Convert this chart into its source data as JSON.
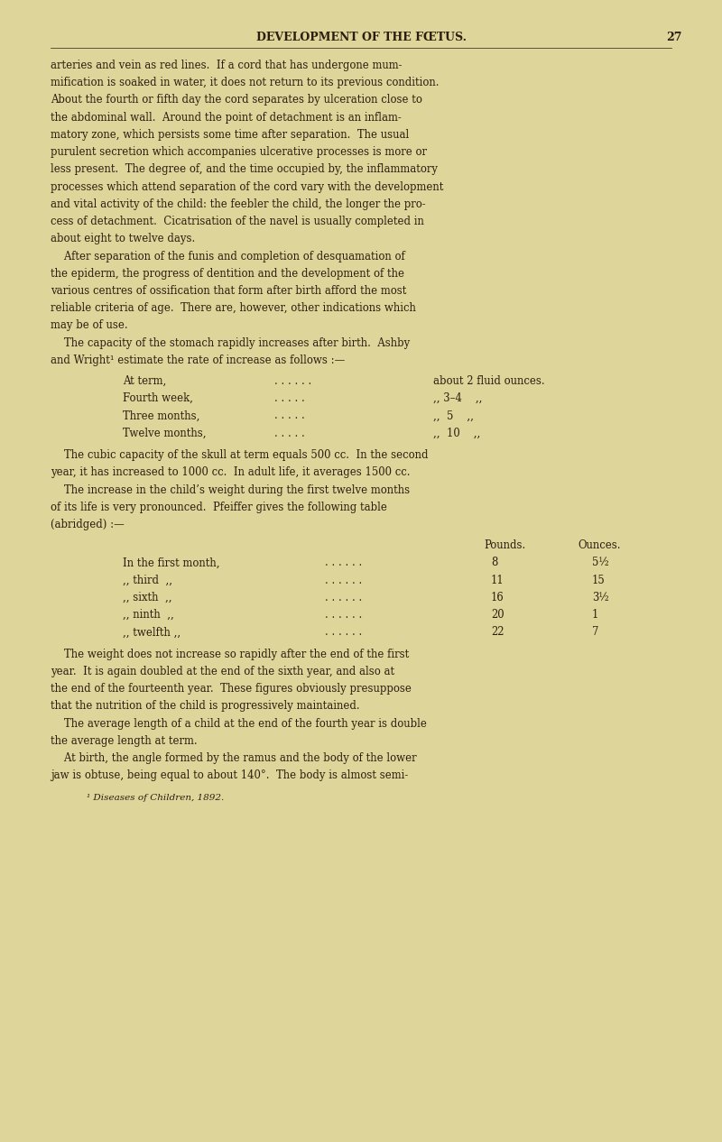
{
  "bg_color": "#ddd59a",
  "text_color": "#2c1e0f",
  "page_width": 8.0,
  "page_height": 12.66,
  "dpi": 100,
  "header": "DEVELOPMENT OF THE FŒTUS.",
  "page_num": "27",
  "body_lines": [
    "arteries and vein as red lines.  If a cord that has undergone mum-",
    "mification is soaked in water, it does not return to its previous condition.",
    "About the fourth or fifth day the cord separates by ulceration close to",
    "the abdominal wall.  Around the point of detachment is an inflam-",
    "matory zone, which persists some time after separation.  The usual",
    "purulent secretion which accompanies ulcerative processes is more or",
    "less present.  The degree of, and the time occupied by, the inflammatory",
    "processes which attend separation of the cord vary with the development",
    "and vital activity of the child: the feebler the child, the longer the pro-",
    "cess of detachment.  Cicatrisation of the navel is usually completed in",
    "about eight to twelve days.",
    "    After separation of the funis and completion of desquamation of",
    "the epiderm, the progress of dentition and the development of the",
    "various centres of ossification that form after birth afford the most",
    "reliable criteria of age.  There are, however, other indications which",
    "may be of use.",
    "    The capacity of the stomach rapidly increases after birth.  Ashby",
    "and Wright¹ estimate the rate of increase as follows :—"
  ],
  "table1_rows": [
    [
      "At term,",
      ". . . . . .",
      "about 2 fluid ounces."
    ],
    [
      "Fourth week,",
      ". . . . .",
      ",, 3–4    ,,"
    ],
    [
      "Three months,",
      ". . . . .",
      ",,  5    ,,"
    ],
    [
      "Twelve months,",
      ". . . . .",
      ",,  10    ,,"
    ]
  ],
  "para2_lines": [
    "    The cubic capacity of the skull at term equals 500 cc.  In the second",
    "year, it has increased to 1000 cc.  In adult life, it averages 1500 cc.",
    "    The increase in the child’s weight during the first twelve months",
    "of its life is very pronounced.  Pfeiffer gives the following table",
    "(abridged) :—"
  ],
  "table2_header_pounds": "Pounds.",
  "table2_header_ounces": "Ounces.",
  "table2_rows": [
    [
      "In the first month,",
      "8",
      "5½"
    ],
    [
      ",, third  ,,",
      "11",
      "15"
    ],
    [
      ",, sixth  ,,",
      "16",
      "3½"
    ],
    [
      ",, ninth  ,,",
      "20",
      "1"
    ],
    [
      ",, twelfth ,,",
      "22",
      "7"
    ]
  ],
  "para3_lines": [
    "    The weight does not increase so rapidly after the end of the first",
    "year.  It is again doubled at the end of the sixth year, and also at",
    "the end of the fourteenth year.  These figures obviously presuppose",
    "that the nutrition of the child is progressively maintained.",
    "    The average length of a child at the end of the fourth year is double",
    "the average length at term.",
    "    At birth, the angle formed by the ramus and the body of the lower",
    "jaw is obtuse, being equal to about 140°.  The body is almost semi-"
  ],
  "footnote": "¹ Diseases of Children, 1892."
}
